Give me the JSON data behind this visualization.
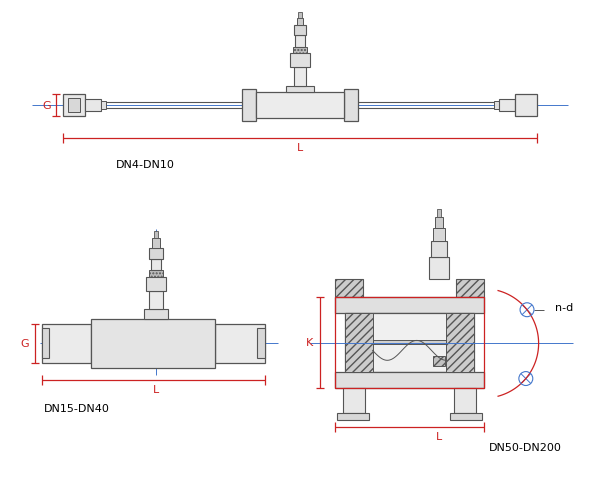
{
  "fig_width": 6.0,
  "fig_height": 4.81,
  "dpi": 100,
  "bg_color": "#ffffff",
  "line_color": "#555555",
  "red_color": "#cc2222",
  "blue_color": "#4477cc",
  "label_DN4": "DN4-DN10",
  "label_DN15": "DN15-DN40",
  "label_DN50": "DN50-DN200",
  "label_G": "G",
  "label_L": "L",
  "label_K": "K",
  "label_nd": "n-d"
}
